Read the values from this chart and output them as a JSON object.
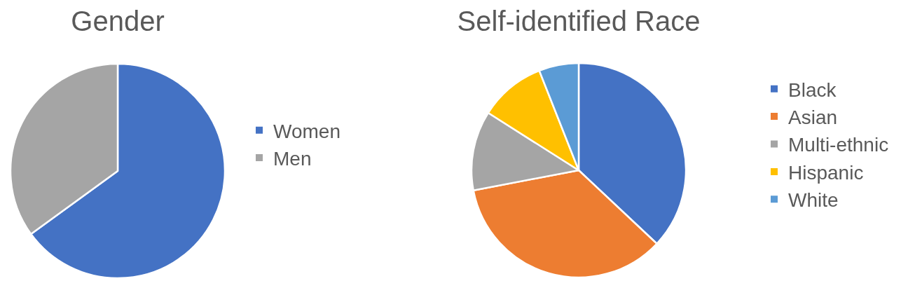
{
  "chart_data": [
    {
      "type": "pie",
      "title": "Gender",
      "categories": [
        "Women",
        "Men"
      ],
      "values": [
        65,
        35
      ],
      "colors": [
        "#4472c4",
        "#a5a5a5"
      ],
      "legend": "right"
    },
    {
      "type": "pie",
      "title": "Self-identified Race",
      "categories": [
        "Black",
        "Asian",
        "Multi-ethnic",
        "Hispanic",
        "White"
      ],
      "values": [
        37,
        35,
        12,
        10,
        6
      ],
      "colors": [
        "#4472c4",
        "#ed7d31",
        "#a5a5a5",
        "#ffc000",
        "#5b9bd5"
      ],
      "legend": "right"
    }
  ]
}
